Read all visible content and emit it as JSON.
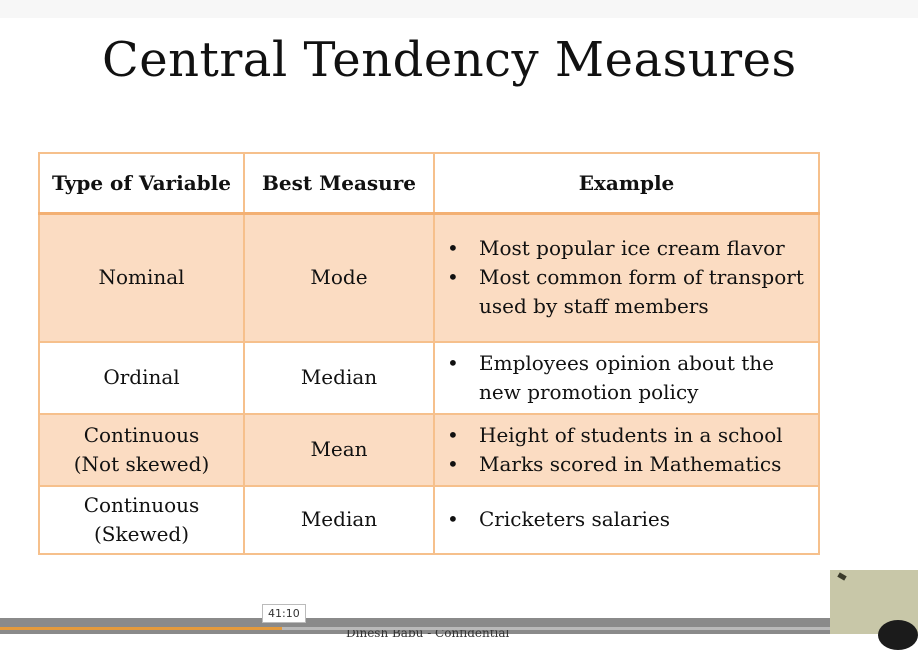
{
  "slide": {
    "title": "Central Tendency Measures",
    "headers": [
      "Type of Variable",
      "Best Measure",
      "Example"
    ],
    "rows": [
      {
        "type_lines": [
          "Nominal"
        ],
        "measure": "Mode",
        "examples": [
          "Most popular ice cream flavor",
          "Most common form of transport used by staff members"
        ]
      },
      {
        "type_lines": [
          "Ordinal"
        ],
        "measure": "Median",
        "examples": [
          "Employees opinion about the new promotion policy"
        ]
      },
      {
        "type_lines": [
          "Continuous",
          "(Not skewed)"
        ],
        "measure": "Mean",
        "examples": [
          "Height of students in a school",
          "Marks scored in Mathematics"
        ]
      },
      {
        "type_lines": [
          "Continuous",
          "(Skewed)"
        ],
        "measure": "Median",
        "examples": [
          "Cricketers salaries"
        ]
      }
    ],
    "footer": "Dinesh Babu - Confidential"
  },
  "player": {
    "timestamp": "41:10",
    "progress": 0.34,
    "progress_color": "#e49a3c"
  },
  "colors": {
    "table_border": "#f6c08c",
    "row_shade": "#fbdcc2"
  },
  "bullet_glyph": "•"
}
